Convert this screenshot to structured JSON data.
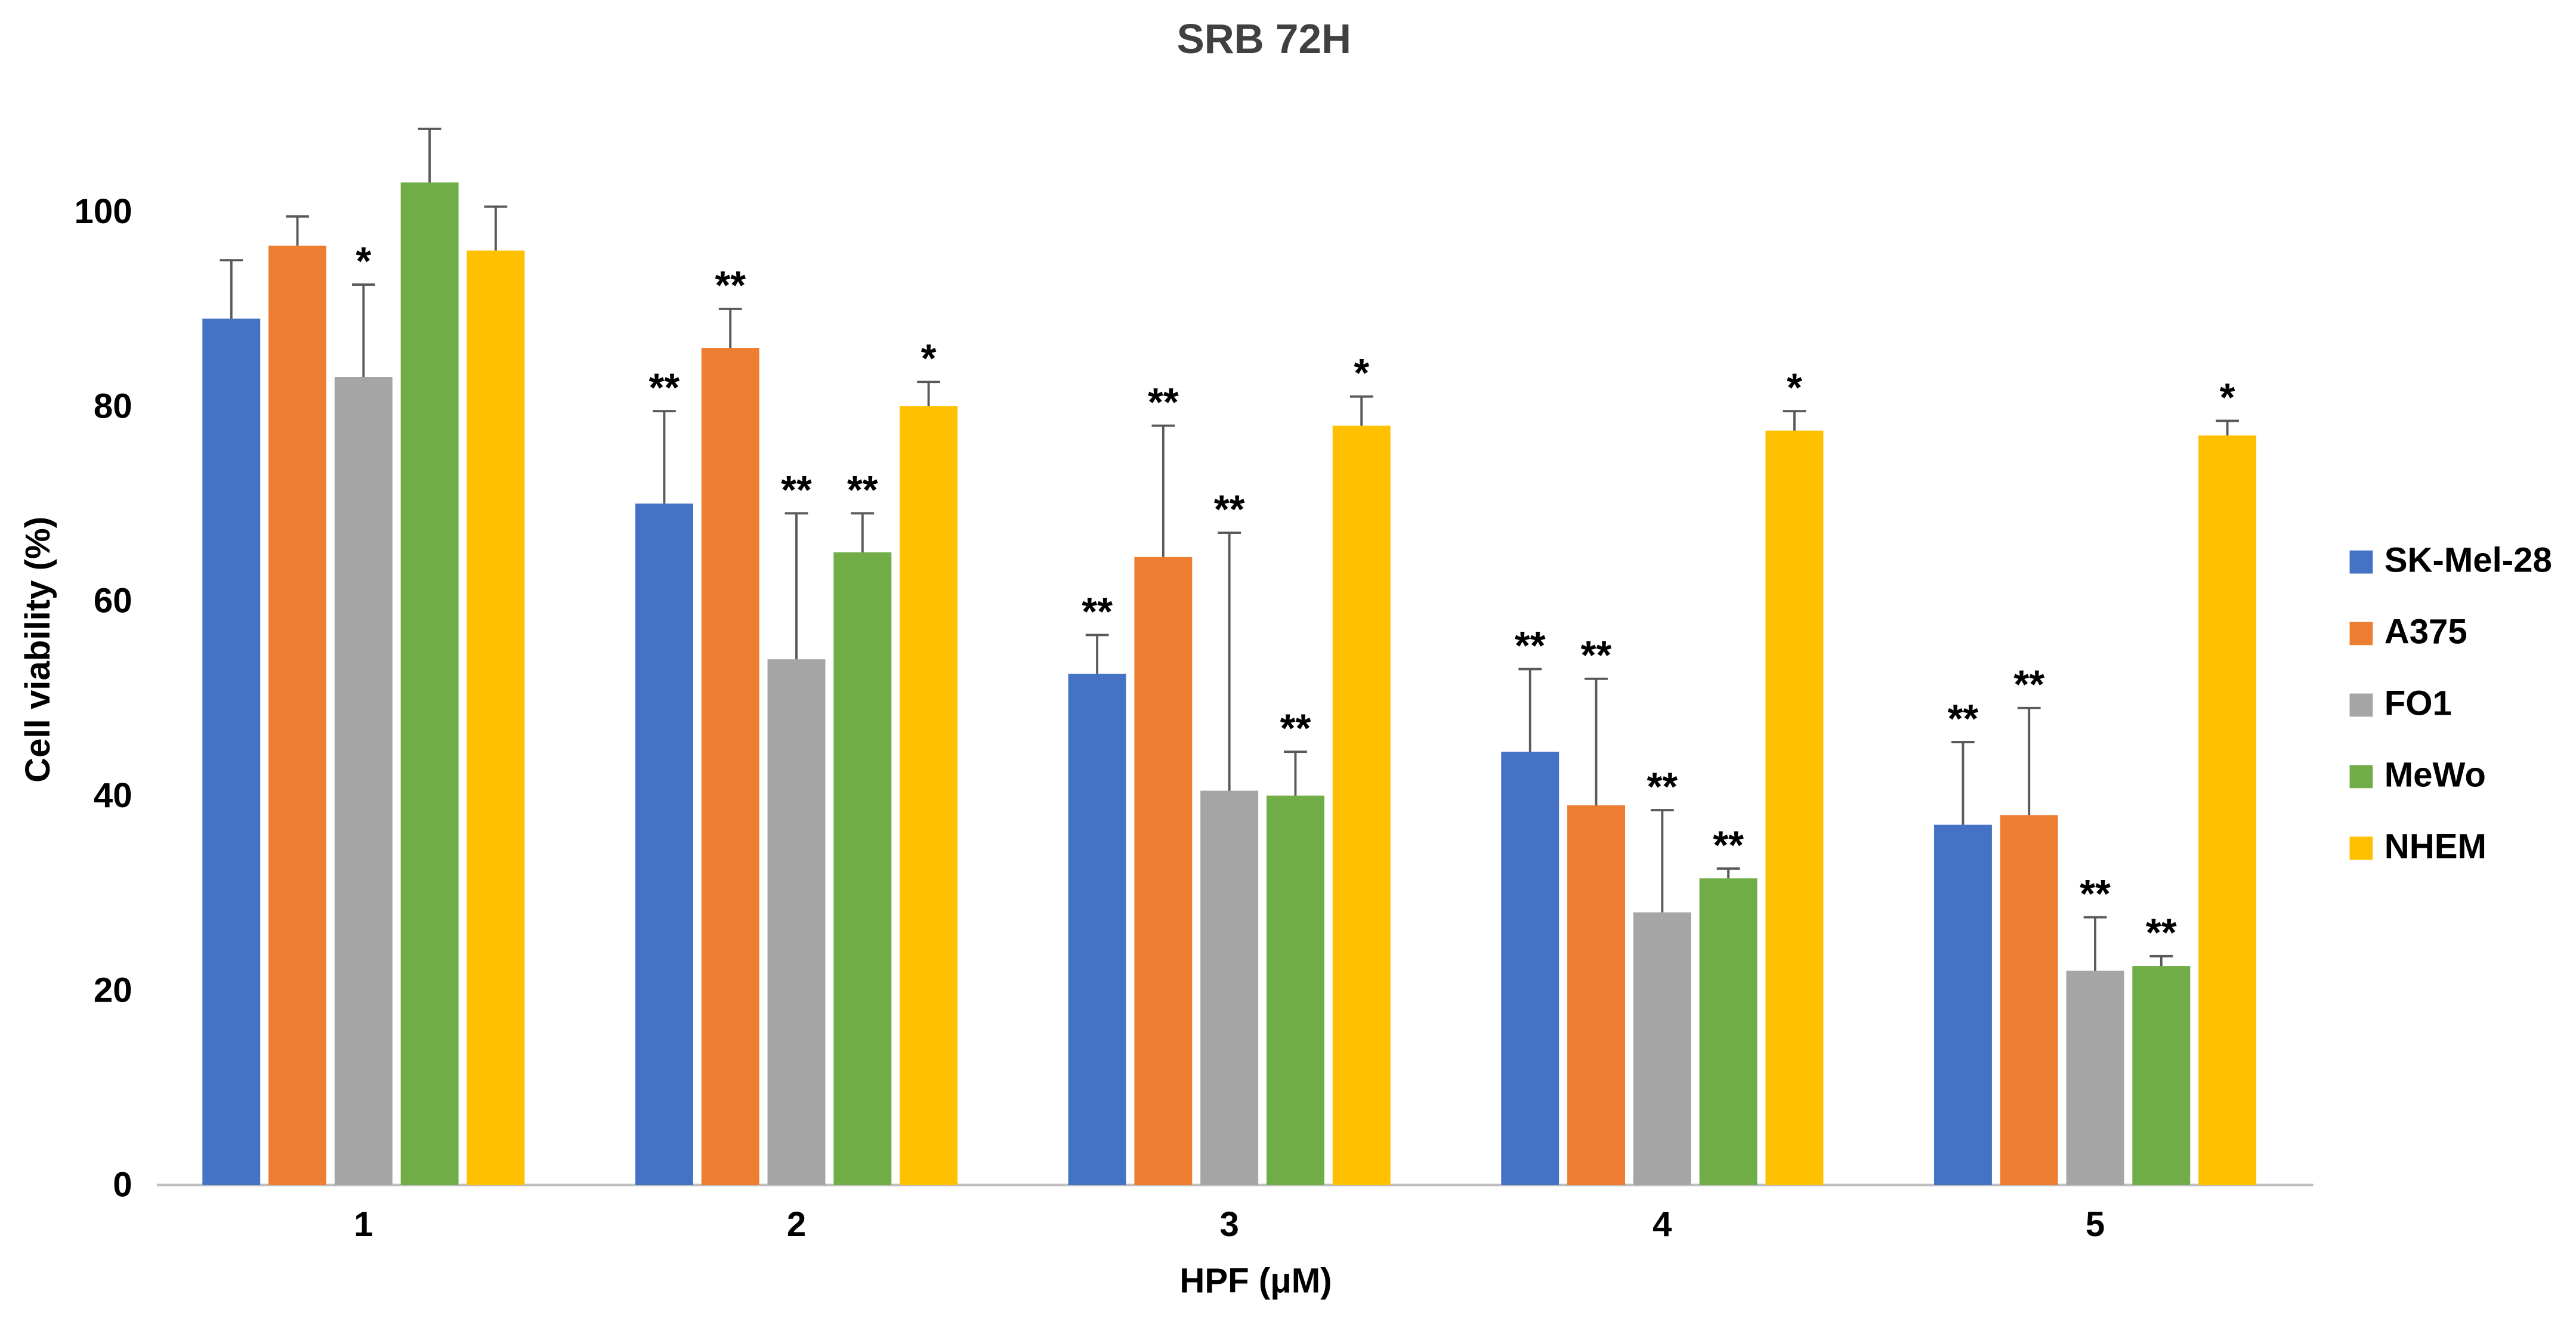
{
  "chart_data": {
    "type": "bar",
    "title": "SRB 72H",
    "xlabel": "HPF (μM)",
    "ylabel": "Cell viability (%)",
    "ylim": [
      0,
      110
    ],
    "yticks": [
      0,
      20,
      40,
      60,
      80,
      100
    ],
    "categories": [
      "1",
      "2",
      "3",
      "4",
      "5"
    ],
    "grid": "off",
    "legend_position": "right",
    "error_bars": "plus-direction",
    "significance_note": "asterisks above bars indicate significance",
    "series": [
      {
        "name": "SK-Mel-28",
        "color": "#4472C4",
        "values": [
          89,
          70,
          52.5,
          44.5,
          37
        ],
        "errors": [
          6,
          9.5,
          4,
          8.5,
          8.5
        ],
        "sig": [
          "",
          "**",
          "**",
          "**",
          "**"
        ]
      },
      {
        "name": "A375",
        "color": "#ED7D31",
        "values": [
          96.5,
          86,
          64.5,
          39,
          38
        ],
        "errors": [
          3,
          4,
          13.5,
          13,
          11
        ],
        "sig": [
          "",
          "**",
          "**",
          "**",
          "**"
        ]
      },
      {
        "name": "FO1",
        "color": "#A5A5A5",
        "values": [
          83,
          54,
          40.5,
          28,
          22
        ],
        "errors": [
          9.5,
          15,
          26.5,
          10.5,
          5.5
        ],
        "sig": [
          "*",
          "**",
          "**",
          "**",
          "**"
        ]
      },
      {
        "name": "MeWo",
        "color": "#70AD47",
        "values": [
          103,
          65,
          40,
          31.5,
          22.5
        ],
        "errors": [
          5.5,
          4,
          4.5,
          1,
          1
        ],
        "sig": [
          "",
          "**",
          "**",
          "**",
          "**"
        ]
      },
      {
        "name": "NHEM",
        "color": "#FFC000",
        "values": [
          96,
          80,
          78,
          77.5,
          77
        ],
        "errors": [
          4.5,
          2.5,
          3,
          2,
          1.5
        ],
        "sig": [
          "",
          "*",
          "*",
          "*",
          "*"
        ]
      }
    ],
    "axis_line_color": "#BFBFBF",
    "error_bar_color": "#595959"
  }
}
